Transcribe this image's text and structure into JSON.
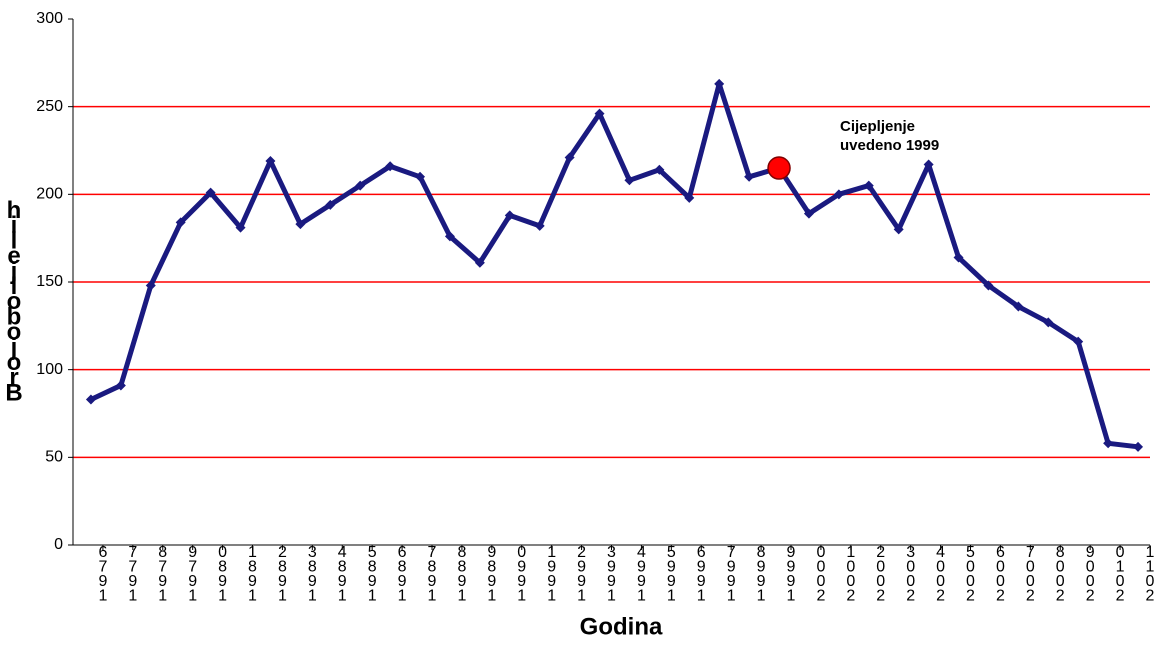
{
  "chart_data": {
    "type": "line",
    "x_label": "Godina",
    "y_label": "Broj oboljelih",
    "annotation": [
      "Cijepljenje",
      "uvedeno 1999"
    ],
    "categories": [
      "1976",
      "1977",
      "1978",
      "1979",
      "1980",
      "1981",
      "1982",
      "1983",
      "1984",
      "1985",
      "1986",
      "1987",
      "1988",
      "1989",
      "1990",
      "1991",
      "1992",
      "1993",
      "1994",
      "1995",
      "1996",
      "1997",
      "1998",
      "1999",
      "2000",
      "2001",
      "2002",
      "2003",
      "2004",
      "2005",
      "2006",
      "2007",
      "2008",
      "2009",
      "2010",
      "2011"
    ],
    "series": [
      {
        "name": "Broj oboljelih",
        "color": "#1a1a80",
        "values": [
          83,
          91,
          148,
          184,
          201,
          181,
          219,
          183,
          194,
          205,
          216,
          210,
          176,
          161,
          188,
          182,
          221,
          246,
          208,
          214,
          198,
          263,
          210,
          215,
          189,
          200,
          205,
          180,
          217,
          164,
          148,
          136,
          127,
          116,
          58,
          56
        ]
      }
    ],
    "highlight": {
      "index": 23,
      "color": "#ff0000"
    },
    "ylim": [
      0,
      300
    ],
    "yticks": [
      0,
      50,
      100,
      150,
      200,
      250,
      300
    ],
    "grid": true,
    "grid_color": "#ff0000"
  }
}
